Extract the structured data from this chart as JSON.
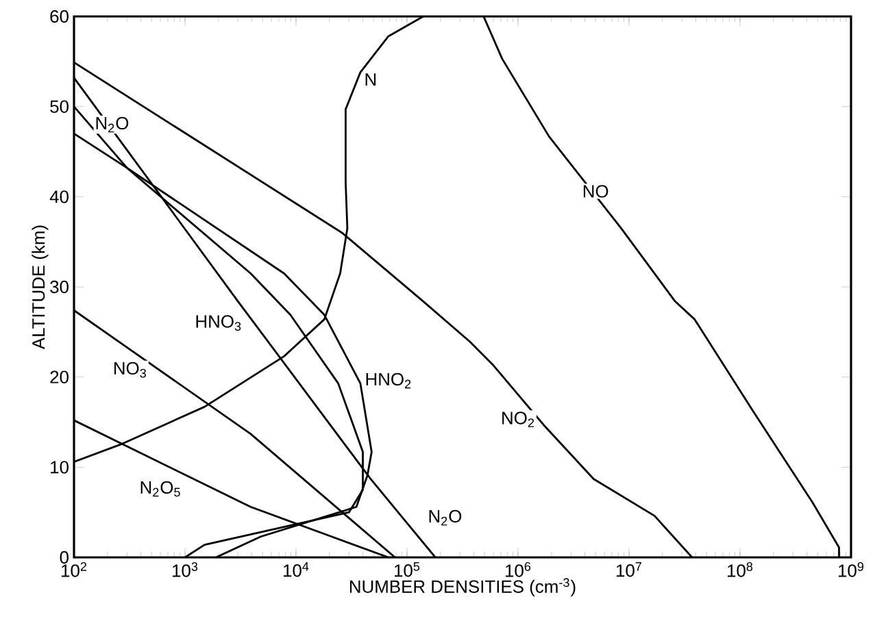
{
  "chart_data": {
    "type": "line",
    "xlabel": "NUMBER DENSITIES (cm$^{-3}$)",
    "ylabel": "ALTITUDE (km)",
    "log": "x",
    "marker": "none",
    "xlim": [
      100,
      1000000000
    ],
    "ylim": [
      0,
      60
    ],
    "xticks": [
      {
        "value": 100,
        "label": "10$^{2}$"
      },
      {
        "value": 1000,
        "label": "10$^{3}$"
      },
      {
        "value": 10000,
        "label": "10$^{4}$"
      },
      {
        "value": 100000,
        "label": "10$^{5}$"
      },
      {
        "value": 1000000,
        "label": "10$^{6}$"
      },
      {
        "value": 10000000,
        "label": "10$^{7}$"
      },
      {
        "value": 100000000,
        "label": "10$^{8}$"
      },
      {
        "value": 1000000000,
        "label": "10$^{9}$"
      }
    ],
    "yticks": [
      0,
      10,
      20,
      30,
      40,
      50,
      60
    ],
    "series": [
      {
        "color": "#000000",
        "x": [
          490000,
          720000,
          1900000,
          8500000,
          26000000,
          39000000,
          130000000,
          450000000,
          780000000,
          780000000
        ],
        "values": [
          60,
          55.3,
          46.7,
          36.5,
          28.4,
          26.4,
          16.3,
          6.1,
          1.1,
          0
        ]
      },
      {
        "color": "#000000",
        "x": [
          100,
          26000,
          140000,
          370000,
          600000,
          1700000,
          4800000,
          17000000,
          37000000
        ],
        "values": [
          54.9,
          36.0,
          28.4,
          23.9,
          21.3,
          14.7,
          8.7,
          4.6,
          0
        ]
      },
      {
        "color": "#000000",
        "x": [
          140000,
          68000,
          38000,
          28000,
          28000,
          29000,
          25000,
          18000,
          7800,
          1500,
          260,
          100
        ],
        "values": [
          60,
          57.8,
          53.8,
          49.7,
          41.6,
          36.5,
          31.5,
          26.4,
          22.3,
          16.7,
          12.5,
          10.6
        ]
      },
      {
        "color": "#000000",
        "x": [
          100,
          3000,
          47000,
          180000
        ],
        "values": [
          53.2,
          28.4,
          8.7,
          0
        ]
      },
      {
        "color": "#000000",
        "x": [
          100,
          300,
          3900,
          8900,
          24000,
          40000,
          40000,
          30000,
          1500,
          1000
        ],
        "values": [
          50.0,
          43.2,
          31.5,
          26.9,
          19.3,
          11.7,
          7.5,
          5.0,
          1.4,
          0
        ]
      },
      {
        "color": "#000000",
        "x": [
          100,
          300,
          7800,
          18000,
          38000,
          48000,
          44000,
          35000,
          4800,
          1900
        ],
        "values": [
          47.0,
          43.2,
          31.5,
          26.9,
          19.3,
          11.7,
          9.1,
          5.6,
          2.3,
          0
        ]
      },
      {
        "color": "#000000",
        "x": [
          100,
          3900,
          78000
        ],
        "values": [
          27.4,
          13.7,
          0
        ]
      },
      {
        "color": "#000000",
        "x": [
          100,
          3900,
          18000,
          68000
        ],
        "values": [
          15.2,
          5.6,
          2.6,
          0
        ]
      }
    ],
    "annotations": [
      {
        "text": "N",
        "x": 47000,
        "y": 53
      },
      {
        "text": "N$_{2}$O",
        "x": 220,
        "y": 48
      },
      {
        "text": "NO",
        "x": 5000000,
        "y": 40.6
      },
      {
        "text": "HNO$_{3}$",
        "x": 2000,
        "y": 26
      },
      {
        "text": "HNO$_{2}$",
        "x": 68000,
        "y": 19.6
      },
      {
        "text": "NO$_{2}$",
        "x": 1000000,
        "y": 15.3
      },
      {
        "text": "NO$_{3}$",
        "x": 320,
        "y": 20.8
      },
      {
        "text": "N$_{2}$O$_{5}$",
        "x": 600,
        "y": 7.6
      },
      {
        "text": "N$_{2}$O",
        "x": 220000,
        "y": 4.4
      }
    ]
  }
}
